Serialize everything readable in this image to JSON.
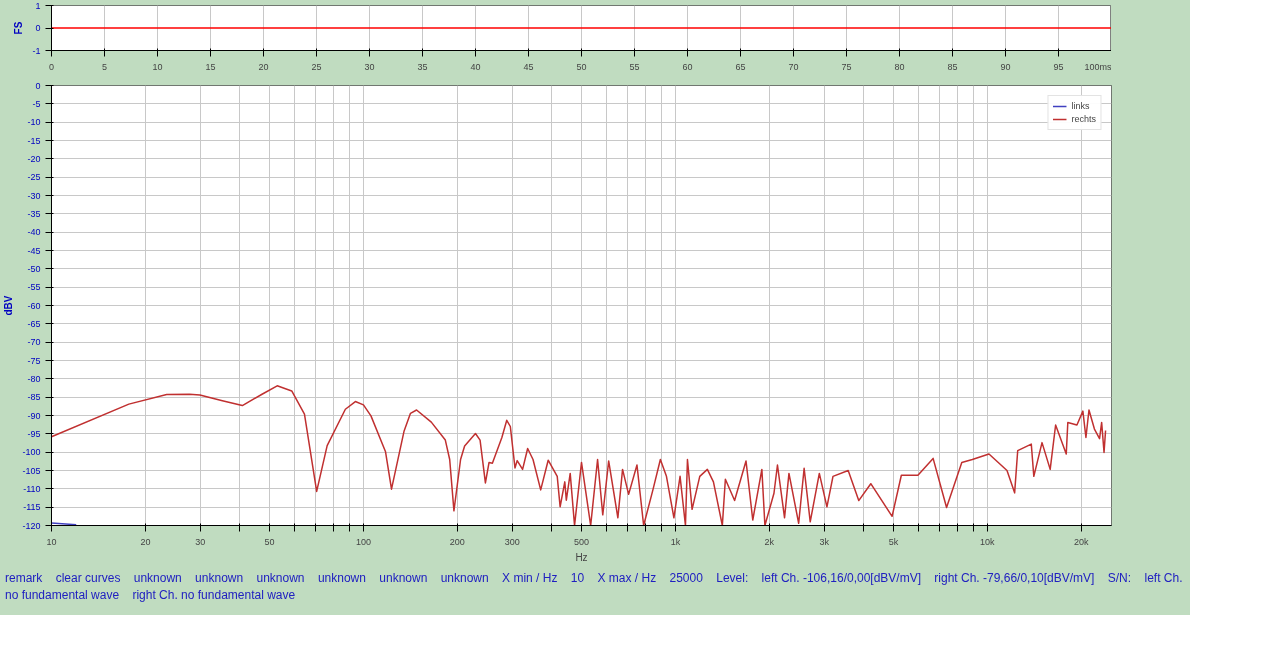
{
  "chart_data": [
    {
      "type": "line",
      "ylabel": "FS",
      "xlim": [
        0,
        100
      ],
      "ylim": [
        -1,
        1
      ],
      "yticks": [
        -1,
        0,
        1
      ],
      "xticks": [
        0,
        5,
        10,
        15,
        20,
        25,
        30,
        35,
        40,
        45,
        50,
        55,
        60,
        65,
        70,
        75,
        80,
        85,
        90,
        95,
        {
          "value": 100,
          "label": "100ms"
        }
      ],
      "grid": "x",
      "legend": false,
      "series": [
        {
          "color": "#ff0000",
          "x": [
            0,
            100
          ],
          "values": [
            0,
            0
          ]
        }
      ]
    },
    {
      "type": "line",
      "log": "x",
      "ylabel": "dBV",
      "xlim": [
        10,
        25000
      ],
      "ylim": [
        -120,
        0
      ],
      "grid": true,
      "legend": "top right",
      "yticks": [
        -120,
        -115,
        -110,
        -105,
        -100,
        -95,
        -90,
        -85,
        -80,
        -75,
        -70,
        -65,
        -60,
        -55,
        -50,
        -45,
        -40,
        -35,
        -30,
        -25,
        -20,
        -15,
        -10,
        -5,
        0
      ],
      "xticks": [
        10,
        20,
        30,
        {
          "value": 40,
          "label": null
        },
        50,
        {
          "value": 60,
          "label": null
        },
        {
          "value": 70,
          "label": null
        },
        {
          "value": 80,
          "label": null
        },
        {
          "value": 90,
          "label": null
        },
        100,
        200,
        300,
        {
          "value": 400,
          "label": null
        },
        500,
        {
          "value": 600,
          "label": null
        },
        {
          "value": 700,
          "label": null
        },
        {
          "value": 800,
          "label": null
        },
        {
          "value": 900,
          "label": null
        },
        {
          "value": 1000,
          "label": "1k"
        },
        {
          "value": 2000,
          "label": "2k"
        },
        {
          "value": 3000,
          "label": "3k"
        },
        {
          "value": 4000,
          "label": null
        },
        {
          "value": 5000,
          "label": "5k"
        },
        {
          "value": 6000,
          "label": null
        },
        {
          "value": 7000,
          "label": null
        },
        {
          "value": 8000,
          "label": null
        },
        {
          "value": 9000,
          "label": null
        },
        {
          "value": 10000,
          "label": "10k"
        },
        {
          "value": 20000,
          "label": "20k"
        }
      ],
      "xlabel": "Hz",
      "annotations": [
        "remark",
        "clear curves",
        "unknown",
        "unknown",
        "unknown",
        "unknown",
        "unknown",
        "unknown",
        "X min / Hz",
        "10",
        "X max / Hz",
        "25000",
        "Level:",
        "left Ch. -106,16/0,00[dBV/mV]",
        "right Ch. -79,66/0,10[dBV/mV]",
        "S/N:",
        "left Ch.  no fundamental wave",
        "right Ch.  no fundamental wave"
      ],
      "series": [
        {
          "name": "links",
          "color": "#4040c0",
          "x": [
            10,
            12
          ],
          "values": [
            -119.3,
            -119.8
          ]
        },
        {
          "name": "rechts",
          "color": "#c03030",
          "x": [
            10,
            17.7,
            23.4,
            27.7,
            29.9,
            35.3,
            40.9,
            47.3,
            52.9,
            58.9,
            64.7,
            70.8,
            76.5,
            87.5,
            94.2,
            100,
            105.7,
            117.7,
            123,
            135,
            141.5,
            148,
            165,
            183,
            189,
            195,
            204.8,
            211,
            228.6,
            236.5,
            246,
            252.7,
            259,
            277.8,
            288,
            295.7,
            306,
            311,
            323.7,
            336,
            349.6,
            370,
            391,
            418,
            427,
            442,
            447,
            460,
            475,
            500,
            535,
            563,
            585,
            611,
            654,
            677,
            708,
            753,
            791,
            847,
            895,
            936,
            989,
            1035,
            1077,
            1093,
            1131,
            1197,
            1266,
            1324,
            1414,
            1446,
            1548,
            1684,
            1770,
            1893,
            1936,
            2070,
            2124,
            2238,
            2312,
            2484,
            2586,
            2705,
            2893,
            3060,
            3200,
            3580,
            3870,
            4230,
            4950,
            5300,
            5990,
            6700,
            7400,
            8280,
            8950,
            10120,
            11560,
            12230,
            12510,
            13830,
            14090,
            14970,
            15900,
            16550,
            17900,
            18110,
            19370,
            20240,
            20700,
            21170,
            22040,
            22890,
            23250,
            23660,
            23930
          ],
          "values": [
            -95.8,
            -86.9,
            -84.3,
            -84.2,
            -84.4,
            -86,
            -87.3,
            -84.2,
            -81.9,
            -83.3,
            -89.6,
            -110.7,
            -98.2,
            -88.3,
            -86.2,
            -87.1,
            -90.1,
            -99.9,
            -110.1,
            -94.2,
            -89.4,
            -88.5,
            -91.8,
            -96.7,
            -102,
            -116,
            -102,
            -98.3,
            -94.9,
            -96.7,
            -108.4,
            -102.8,
            -103,
            -96,
            -91.3,
            -93,
            -104.3,
            -102.3,
            -104.7,
            -99,
            -102,
            -110.3,
            -102.2,
            -106.6,
            -114.9,
            -108.1,
            -113.1,
            -105.8,
            -120,
            -102.8,
            -120,
            -102,
            -117.1,
            -102.4,
            -117.9,
            -104.7,
            -111.5,
            -103.5,
            -120,
            -110.3,
            -102,
            -106.6,
            -117.9,
            -106.6,
            -120,
            -102,
            -115.6,
            -106.6,
            -104.7,
            -108.1,
            -120,
            -107.4,
            -113.2,
            -102.4,
            -118.5,
            -104.7,
            -120,
            -111.2,
            -103.5,
            -117.9,
            -105.8,
            -119.4,
            -104.4,
            -119,
            -105.8,
            -114.9,
            -106.6,
            -105,
            -113.2,
            -108.6,
            -117.5,
            -106.3,
            -106.3,
            -101.7,
            -115.1,
            -102.8,
            -102,
            -100.5,
            -105,
            -111.1,
            -99.6,
            -97.8,
            -106.6,
            -97.4,
            -104.7,
            -92.6,
            -100.5,
            -91.9,
            -92.6,
            -88.8,
            -96,
            -88.5,
            -93.7,
            -96.3,
            -91.9,
            -100.1,
            -94.1
          ]
        }
      ]
    }
  ]
}
